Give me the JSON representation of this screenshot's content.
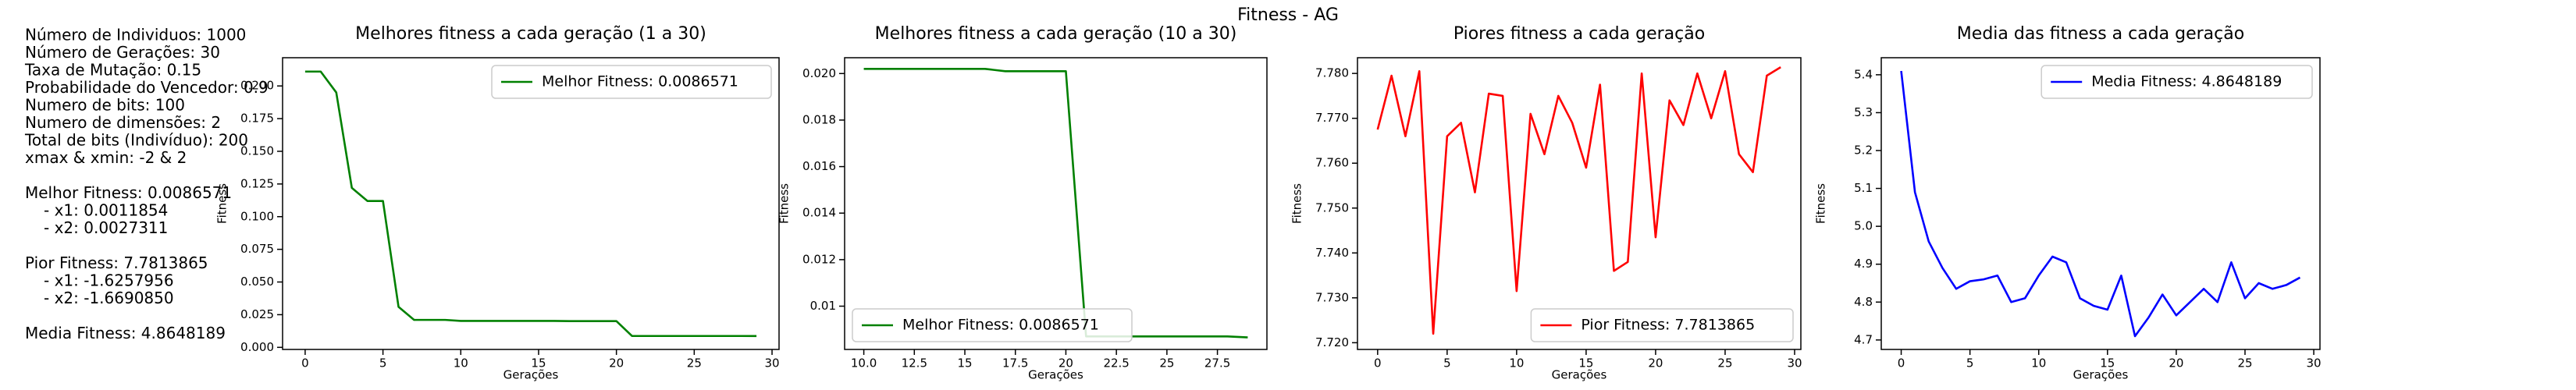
{
  "title": "Fitness - AG",
  "info": {
    "parameters": [
      "Número de Individuos: 1000",
      "Número de Gerações: 30",
      "Taxa de Mutação: 0.15",
      "Probabilidade do Vencedor: 0.9",
      "Numero de bits: 100",
      "Numero de dimensões: 2",
      "Total de bits (Indivíduo): 200",
      "xmax & xmin: -2 & 2"
    ],
    "best": {
      "heading": "Melhor Fitness: 0.0086571",
      "items": [
        "- x1: 0.0011854",
        "- x2: 0.0027311"
      ]
    },
    "worst": {
      "heading": "Pior Fitness: 7.7813865",
      "items": [
        "- x1: -1.6257956",
        "- x2: -1.6690850"
      ]
    },
    "mean": "Media Fitness: 4.8648189"
  },
  "chart_data": [
    {
      "type": "line",
      "title": "Melhores fitness a cada geração (1 a 30)",
      "xlabel": "Gerações",
      "ylabel": "Fitness",
      "x": [
        0,
        1,
        2,
        3,
        4,
        5,
        6,
        7,
        8,
        9,
        10,
        11,
        12,
        13,
        14,
        15,
        16,
        17,
        18,
        19,
        20,
        21,
        22,
        23,
        24,
        25,
        26,
        27,
        28,
        29
      ],
      "series": [
        {
          "name": "Melhor Fitness: 0.0086571",
          "color": "#008000",
          "values": [
            0.211,
            0.211,
            0.195,
            0.122,
            0.112,
            0.112,
            0.031,
            0.021,
            0.021,
            0.021,
            0.0202,
            0.0202,
            0.0202,
            0.0202,
            0.0202,
            0.0202,
            0.0202,
            0.0201,
            0.0201,
            0.0201,
            0.0201,
            0.0087,
            0.0087,
            0.0087,
            0.0087,
            0.0087,
            0.0087,
            0.0087,
            0.0087,
            0.0086571
          ]
        }
      ],
      "xlim": [
        -1.45,
        30.45
      ],
      "xticks": [
        0,
        5,
        10,
        15,
        20,
        25,
        30
      ],
      "ylim": [
        -0.0016,
        0.2216
      ],
      "yticks": [
        {
          "value": 0,
          "label": "0.000"
        },
        {
          "value": 0.025,
          "label": "0.025"
        },
        {
          "value": 0.05,
          "label": "0.050"
        },
        {
          "value": 0.075,
          "label": "0.075"
        },
        {
          "value": 0.1,
          "label": "0.100"
        },
        {
          "value": 0.125,
          "label": "0.125"
        },
        {
          "value": 0.15,
          "label": "0.150"
        },
        {
          "value": 0.175,
          "label": "0.175"
        },
        {
          "value": 0.2,
          "label": "0.200"
        }
      ],
      "legend": "upper right"
    },
    {
      "type": "line",
      "title": "Melhores fitness a cada geração (10 a 30)",
      "xlabel": "Gerações",
      "ylabel": "Fitness",
      "x": [
        10,
        11,
        12,
        13,
        14,
        15,
        16,
        17,
        18,
        19,
        20,
        21,
        22,
        23,
        24,
        25,
        26,
        27,
        28,
        29
      ],
      "series": [
        {
          "name": "Melhor Fitness: 0.0086571",
          "color": "#008000",
          "values": [
            0.0202,
            0.0202,
            0.0202,
            0.0202,
            0.0202,
            0.0202,
            0.0202,
            0.0201,
            0.0201,
            0.0201,
            0.0201,
            0.0087,
            0.0087,
            0.0087,
            0.0087,
            0.0087,
            0.0087,
            0.0087,
            0.0087,
            0.0086571
          ]
        }
      ],
      "xlim": [
        9.05,
        29.95
      ],
      "xticks": [
        {
          "value": 10,
          "label": "10.0"
        },
        12.5,
        15,
        17.5,
        20,
        22.5,
        25,
        27.5
      ],
      "ylim": [
        0.00814,
        0.02068
      ],
      "yticks": [
        0.01,
        0.012,
        0.014,
        0.016,
        0.018,
        {
          "value": 0.02,
          "label": "0.020"
        }
      ],
      "legend": "lower left"
    },
    {
      "type": "line",
      "title": "Piores fitness a cada geração",
      "xlabel": "Gerações",
      "ylabel": "Fitness",
      "x": [
        0,
        1,
        2,
        3,
        4,
        5,
        6,
        7,
        8,
        9,
        10,
        11,
        12,
        13,
        14,
        15,
        16,
        17,
        18,
        19,
        20,
        21,
        22,
        23,
        24,
        25,
        26,
        27,
        28,
        29
      ],
      "series": [
        {
          "name": "Pior Fitness: 7.7813865",
          "color": "#ff0000",
          "values": [
            7.7675,
            7.7795,
            7.766,
            7.7805,
            7.722,
            7.766,
            7.769,
            7.7535,
            7.7755,
            7.775,
            7.7315,
            7.771,
            7.762,
            7.775,
            7.769,
            7.759,
            7.7775,
            7.736,
            7.738,
            7.78,
            7.7435,
            7.774,
            7.7685,
            7.78,
            7.77,
            7.7805,
            7.762,
            7.758,
            7.7795,
            7.7813865
          ]
        }
      ],
      "xlim": [
        -1.45,
        30.45
      ],
      "xticks": [
        0,
        5,
        10,
        15,
        20,
        25,
        30
      ],
      "ylim": [
        7.7185,
        7.7835
      ],
      "yticks": [
        {
          "value": 7.72,
          "label": "7.720"
        },
        {
          "value": 7.73,
          "label": "7.730"
        },
        {
          "value": 7.74,
          "label": "7.740"
        },
        {
          "value": 7.75,
          "label": "7.750"
        },
        {
          "value": 7.76,
          "label": "7.760"
        },
        {
          "value": 7.77,
          "label": "7.770"
        },
        {
          "value": 7.78,
          "label": "7.780"
        }
      ],
      "legend": "lower right"
    },
    {
      "type": "line",
      "title": "Media das fitness a cada geração",
      "xlabel": "Gerações",
      "ylabel": "Fitness",
      "x": [
        0,
        1,
        2,
        3,
        4,
        5,
        6,
        7,
        8,
        9,
        10,
        11,
        12,
        13,
        14,
        15,
        16,
        17,
        18,
        19,
        20,
        21,
        22,
        23,
        24,
        25,
        26,
        27,
        28,
        29
      ],
      "series": [
        {
          "name": "Media Fitness: 4.8648189",
          "color": "#0000ff",
          "values": [
            5.41,
            5.09,
            4.96,
            4.89,
            4.835,
            4.855,
            4.86,
            4.87,
            4.8,
            4.81,
            4.87,
            4.92,
            4.905,
            4.81,
            4.79,
            4.78,
            4.87,
            4.71,
            4.76,
            4.82,
            4.765,
            4.8,
            4.835,
            4.8,
            4.905,
            4.81,
            4.85,
            4.835,
            4.845,
            4.8648189
          ]
        }
      ],
      "xlim": [
        -1.45,
        30.45
      ],
      "xticks": [
        0,
        5,
        10,
        15,
        20,
        25,
        30
      ],
      "ylim": [
        4.675,
        5.445
      ],
      "yticks": [
        4.7,
        4.8,
        4.9,
        {
          "value": 5,
          "label": "5.0"
        },
        5.1,
        5.2,
        5.3,
        5.4
      ],
      "legend": "upper right"
    }
  ]
}
